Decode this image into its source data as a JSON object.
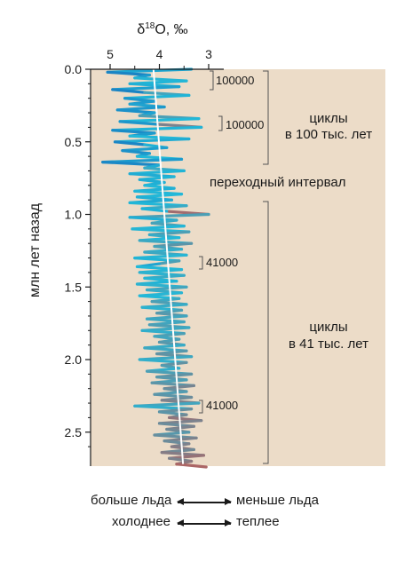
{
  "chart_data": {
    "type": "line",
    "title": "",
    "xlabel": "δ18O, ‰",
    "xlabel_parts": {
      "delta": "δ",
      "sup": "18",
      "rest": "O, ‰"
    },
    "ylabel": "млн лет назад",
    "x_axis_reversed": true,
    "xlim": [
      5.2,
      2.75
    ],
    "ylim": [
      0,
      2.75
    ],
    "x_ticks": [
      5,
      4,
      3
    ],
    "x_tick_labels": [
      "5",
      "4",
      "3"
    ],
    "y_ticks": [
      0,
      0.5,
      1.0,
      1.5,
      2.0,
      2.5
    ],
    "y_tick_labels": [
      "0.0",
      "0.5",
      "1.0",
      "1.5",
      "2.0",
      "2.5"
    ],
    "grid": false,
    "colors": {
      "panel_background": "#ecdcc8",
      "cold": "#1565b8",
      "mid": "#22b8d8",
      "warm": "#e0463a",
      "trend": "#ffffff"
    },
    "series": [
      {
        "values_desc": "δ18O versus age (Ma)",
        "age": [
          0.0,
          0.02,
          0.04,
          0.06,
          0.08,
          0.1,
          0.12,
          0.14,
          0.16,
          0.18,
          0.2,
          0.22,
          0.24,
          0.26,
          0.28,
          0.3,
          0.32,
          0.34,
          0.36,
          0.38,
          0.4,
          0.42,
          0.44,
          0.46,
          0.48,
          0.5,
          0.52,
          0.54,
          0.56,
          0.58,
          0.6,
          0.62,
          0.64,
          0.66,
          0.68,
          0.7,
          0.72,
          0.74,
          0.76,
          0.78,
          0.8,
          0.82,
          0.84,
          0.86,
          0.88,
          0.9,
          0.92,
          0.94,
          0.96,
          0.98,
          1.0,
          1.02,
          1.04,
          1.06,
          1.08,
          1.1,
          1.12,
          1.14,
          1.16,
          1.18,
          1.2,
          1.22,
          1.24,
          1.26,
          1.28,
          1.3,
          1.32,
          1.34,
          1.36,
          1.38,
          1.4,
          1.42,
          1.44,
          1.46,
          1.48,
          1.5,
          1.52,
          1.54,
          1.56,
          1.58,
          1.6,
          1.62,
          1.64,
          1.66,
          1.68,
          1.7,
          1.72,
          1.74,
          1.76,
          1.78,
          1.8,
          1.82,
          1.84,
          1.86,
          1.88,
          1.9,
          1.92,
          1.94,
          1.96,
          1.98,
          2.0,
          2.02,
          2.04,
          2.06,
          2.08,
          2.1,
          2.12,
          2.14,
          2.16,
          2.18,
          2.2,
          2.22,
          2.24,
          2.26,
          2.28,
          2.3,
          2.32,
          2.34,
          2.36,
          2.38,
          2.4,
          2.42,
          2.44,
          2.46,
          2.48,
          2.5,
          2.52,
          2.54,
          2.56,
          2.58,
          2.6,
          2.62,
          2.64,
          2.66,
          2.68,
          2.7,
          2.72,
          2.74
        ],
        "d18O": [
          3.35,
          5.05,
          4.2,
          4.5,
          3.45,
          4.6,
          3.6,
          4.95,
          4.3,
          3.4,
          4.7,
          4.1,
          4.6,
          3.9,
          4.85,
          4.1,
          4.4,
          3.2,
          4.8,
          4.0,
          3.15,
          4.95,
          4.1,
          4.6,
          3.4,
          4.9,
          4.3,
          3.85,
          4.75,
          4.2,
          4.45,
          3.55,
          5.15,
          4.0,
          4.3,
          3.5,
          4.6,
          3.7,
          4.4,
          3.9,
          4.3,
          3.7,
          4.5,
          3.55,
          4.45,
          3.75,
          4.6,
          3.45,
          4.35,
          3.8,
          3.0,
          4.6,
          3.65,
          4.15,
          3.5,
          4.55,
          3.4,
          4.2,
          3.6,
          4.4,
          3.35,
          4.1,
          3.55,
          4.3,
          3.45,
          4.5,
          3.6,
          4.0,
          4.45,
          3.55,
          4.4,
          3.5,
          4.3,
          3.65,
          4.45,
          3.45,
          4.25,
          3.55,
          4.4,
          3.6,
          4.15,
          3.45,
          4.35,
          3.55,
          4.05,
          3.45,
          4.25,
          3.5,
          4.2,
          3.4,
          4.35,
          3.5,
          4.1,
          3.6,
          4.0,
          3.5,
          4.3,
          3.45,
          4.05,
          3.35,
          4.4,
          3.45,
          3.95,
          3.6,
          4.25,
          3.35,
          4.05,
          3.45,
          4.15,
          3.3,
          3.9,
          3.45,
          4.1,
          3.35,
          3.95,
          3.2,
          4.5,
          3.35,
          4.0,
          3.45,
          3.8,
          3.15,
          4.0,
          3.3,
          3.85,
          3.4,
          4.1,
          3.25,
          3.9,
          3.4,
          3.75,
          3.3,
          3.95,
          3.1,
          3.8,
          3.35,
          3.65,
          3.05
        ]
      }
    ],
    "trend": {
      "age": [
        0.0,
        2.72
      ],
      "d18O": [
        4.12,
        3.52
      ]
    },
    "annotations": {
      "cycle_labels": [
        "100000",
        "100000",
        "41000",
        "41000"
      ],
      "regime_100k": [
        "циклы",
        "в 100 тыс. лет"
      ],
      "transition": "переходный интервал",
      "regime_41k": [
        "циклы",
        "в 41 тыс. лет"
      ]
    },
    "legend": {
      "ice_left": "больше льда",
      "ice_right": "меньше льда",
      "temp_left": "холоднее",
      "temp_right": "теплее"
    }
  }
}
